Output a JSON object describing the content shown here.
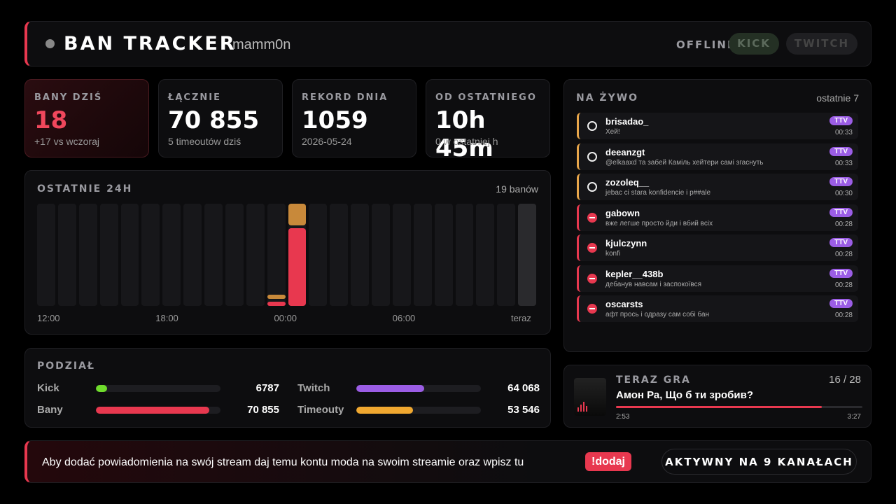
{
  "header": {
    "title": "BAN TRACKER",
    "channel": "mamm0n",
    "status": "OFFLINE",
    "buttons": [
      "KICK",
      "TWITCH"
    ]
  },
  "stats": [
    {
      "label": "BANY DZIŚ",
      "value": "18",
      "sub": "+17 vs wczoraj",
      "highlight": true
    },
    {
      "label": "ŁĄCZNIE",
      "value": "70 855",
      "sub": "5 timeoutów dziś"
    },
    {
      "label": "REKORD DNIA",
      "value": "1059",
      "sub": "2026-05-24"
    },
    {
      "label": "OD OSTATNIEGO",
      "value": "10h 45m",
      "sub": "0 w ostatniej h"
    }
  ],
  "chart": {
    "title": "OSTATNIE 24H",
    "summary": "19 banów",
    "x_labels": [
      "12:00",
      "18:00",
      "00:00",
      "06:00",
      "teraz"
    ],
    "bans": [
      0,
      0,
      0,
      0,
      0,
      0,
      0,
      0,
      0,
      0,
      0,
      1,
      18,
      0,
      0,
      0,
      0,
      0,
      0,
      0,
      0,
      0,
      0,
      0
    ],
    "timeouts": [
      0,
      0,
      0,
      0,
      0,
      0,
      0,
      0,
      0,
      0,
      0,
      1,
      5,
      0,
      0,
      0,
      0,
      0,
      0,
      0,
      0,
      0,
      0,
      0
    ],
    "colors": {
      "bans": "#e8384f",
      "timeouts": "#c8893a"
    }
  },
  "breakdown": {
    "title": "PODZIAŁ",
    "pairs": [
      [
        {
          "name": "Kick",
          "value": 6787,
          "color": "#6fdc2c"
        },
        {
          "name": "Bany",
          "value": 70855,
          "value_label": "70 855",
          "color": "#e8384f"
        }
      ],
      [
        {
          "name": "Twitch",
          "value": 64068,
          "value_label": "64 068",
          "color": "#9b5de5"
        },
        {
          "name": "Timeouty",
          "value": 53546,
          "value_label": "53 546",
          "color": "#f0a830"
        }
      ]
    ]
  },
  "live": {
    "title": "NA ŻYWO",
    "summary": "ostatnie 7",
    "items": [
      {
        "user": "brisadao_",
        "message": "Хей!",
        "badge": "TTV",
        "time": "00:33",
        "kind": "timeout"
      },
      {
        "user": "deeanzgt",
        "message": "@elkaaxd та забей Каміль хейтери самі згаснуть",
        "badge": "TTV",
        "time": "00:33",
        "kind": "timeout"
      },
      {
        "user": "zozoleq__",
        "message": "jebac ci stara konfidencie i p##ale",
        "badge": "TTV",
        "time": "00:30",
        "kind": "timeout"
      },
      {
        "user": "gabown",
        "message": "вже легше просто йди і вбий всіх",
        "badge": "TTV",
        "time": "00:28",
        "kind": "ban"
      },
      {
        "user": "kjulczynn",
        "message": "konfi",
        "badge": "TTV",
        "time": "00:28",
        "kind": "ban"
      },
      {
        "user": "kepler__438b",
        "message": "дебанув навсам і заспокоївся",
        "badge": "TTV",
        "time": "00:28",
        "kind": "ban"
      },
      {
        "user": "oscarsts",
        "message": "афт прось і одразу сам собі бан",
        "badge": "TTV",
        "time": "00:28",
        "kind": "ban"
      }
    ]
  },
  "now_playing": {
    "label": "TERAZ GRA",
    "position": "16 / 28",
    "song": "Амон Ра, Що б ти зробив?",
    "elapsed": "2:53",
    "duration": "3:27"
  },
  "footer": {
    "message": "Aby dodać powiadomienia na swój stream daj temu kontu moda na swoim streamie oraz wpisz tu",
    "command": "!dodaj",
    "status": "AKTYWNY NA 9 KANAŁACH"
  }
}
